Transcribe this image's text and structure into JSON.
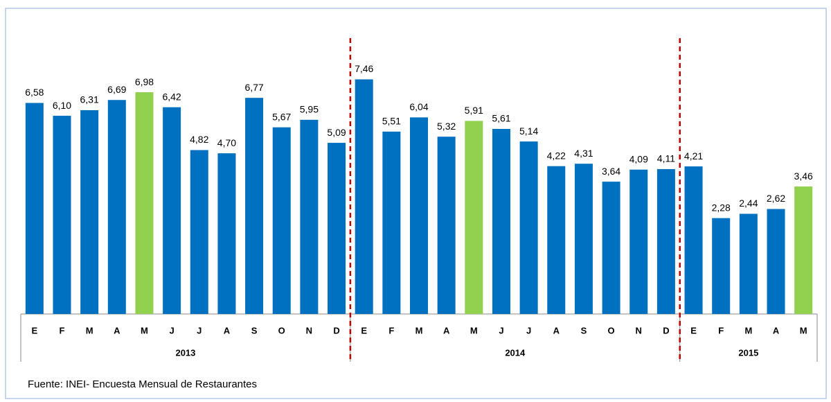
{
  "chart_data": {
    "type": "bar",
    "ylim": [
      -1.3,
      9
    ],
    "separator_color": "#c00000",
    "groups": [
      {
        "name": "2013",
        "categories": [
          "E",
          "F",
          "M",
          "A",
          "M",
          "J",
          "J",
          "A",
          "S",
          "O",
          "N",
          "D"
        ],
        "values": [
          6.58,
          6.1,
          6.31,
          6.69,
          6.98,
          6.42,
          4.82,
          4.7,
          6.77,
          5.67,
          5.95,
          5.09
        ],
        "value_labels": [
          "6,58",
          "6,10",
          "6,31",
          "6,69",
          "6,98",
          "6,42",
          "4,82",
          "4,70",
          "6,77",
          "5,67",
          "5,95",
          "5,09"
        ],
        "colors": [
          "#0070c0",
          "#0070c0",
          "#0070c0",
          "#0070c0",
          "#92d050",
          "#0070c0",
          "#0070c0",
          "#0070c0",
          "#0070c0",
          "#0070c0",
          "#0070c0",
          "#0070c0"
        ]
      },
      {
        "name": "2014",
        "categories": [
          "E",
          "F",
          "M",
          "A",
          "M",
          "J",
          "J",
          "A",
          "S",
          "O",
          "N",
          "D"
        ],
        "values": [
          7.46,
          5.51,
          6.04,
          5.32,
          5.91,
          5.61,
          5.14,
          4.22,
          4.31,
          3.64,
          4.09,
          4.11
        ],
        "value_labels": [
          "7,46",
          "5,51",
          "6,04",
          "5,32",
          "5,91",
          "5,61",
          "5,14",
          "4,22",
          "4,31",
          "3,64",
          "4,09",
          "4,11"
        ],
        "colors": [
          "#0070c0",
          "#0070c0",
          "#0070c0",
          "#0070c0",
          "#92d050",
          "#0070c0",
          "#0070c0",
          "#0070c0",
          "#0070c0",
          "#0070c0",
          "#0070c0",
          "#0070c0"
        ]
      },
      {
        "name": "2015",
        "categories": [
          "E",
          "F",
          "M",
          "A",
          "M"
        ],
        "values": [
          4.21,
          2.28,
          2.44,
          2.62,
          3.46
        ],
        "value_labels": [
          "4,21",
          "2,28",
          "2,44",
          "2,62",
          "3,46"
        ],
        "colors": [
          "#0070c0",
          "#0070c0",
          "#0070c0",
          "#0070c0",
          "#92d050"
        ]
      }
    ],
    "footnote": "Fuente: INEI- Encuesta Mensual de Restaurantes"
  }
}
